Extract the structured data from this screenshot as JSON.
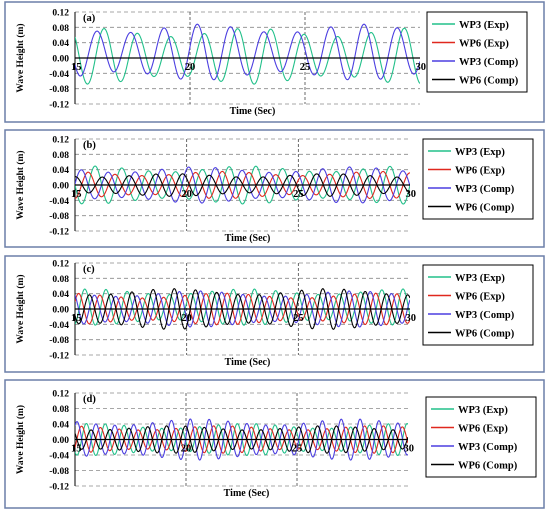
{
  "chart_data": [
    {
      "type": "line",
      "panel_label": "(a)",
      "xlabel": "Time (Sec)",
      "ylabel": "Wave Height (m)",
      "xlim": [
        15,
        30
      ],
      "ylim": [
        -0.12,
        0.12
      ],
      "x_ticks": [
        "15",
        "20",
        "25",
        "30"
      ],
      "y_ticks": [
        "0.12",
        "0.08",
        "0.04",
        "0.00",
        "-0.04",
        "-0.08",
        "-0.12"
      ],
      "grid": "dashed horizontal at y ticks, dashed vertical at 20 and 25",
      "legend_position": "right",
      "series": [
        {
          "name": "WP3 (Exp)",
          "color": "#22c08a",
          "amplitude": 0.062,
          "offset": 0.005,
          "period": 1.45,
          "phase": 0.2,
          "time_shift": 0.0
        },
        {
          "name": "WP6 (Exp)",
          "color": "#e0281e",
          "amplitude": 0.0,
          "offset": 0.0,
          "period": 1.45,
          "phase": 0.0,
          "time_shift": 0.0
        },
        {
          "name": "WP3 (Comp)",
          "color": "#4b3ee0",
          "amplitude": 0.062,
          "offset": 0.015,
          "period": 1.45,
          "phase": 1.5,
          "time_shift": -0.0008
        },
        {
          "name": "WP6 (Comp)",
          "color": "#000000",
          "amplitude": 0.0,
          "offset": 0.0,
          "period": 1.45,
          "phase": 0.0,
          "time_shift": 0.0
        }
      ]
    },
    {
      "type": "line",
      "panel_label": "(b)",
      "xlabel": "Time (Sec)",
      "ylabel": "Wave Height (m)",
      "xlim": [
        15,
        30
      ],
      "ylim": [
        -0.12,
        0.12
      ],
      "x_ticks": [
        "15",
        "20",
        "25",
        "30"
      ],
      "y_ticks": [
        "0.12",
        "0.08",
        "0.04",
        "0.00",
        "-0.04",
        "-0.08",
        "-0.12"
      ],
      "grid": "dashed horizontal at y ticks, dashed vertical at 20 and 25",
      "legend_position": "right",
      "series": [
        {
          "name": "WP3 (Exp)",
          "color": "#22c08a",
          "amplitude": 0.042,
          "offset": 0.0,
          "period": 1.2,
          "phase": 0.0,
          "time_shift": 0.0
        },
        {
          "name": "WP6 (Exp)",
          "color": "#e0281e",
          "amplitude": 0.03,
          "offset": 0.0,
          "period": 1.2,
          "phase": 1.6,
          "time_shift": 0.0
        },
        {
          "name": "WP3 (Comp)",
          "color": "#4b3ee0",
          "amplitude": 0.04,
          "offset": 0.0,
          "period": 1.2,
          "phase": 3.2,
          "time_shift": 0.0
        },
        {
          "name": "WP6 (Comp)",
          "color": "#000000",
          "amplitude": 0.025,
          "offset": 0.0,
          "period": 1.2,
          "phase": 4.6,
          "time_shift": 0.0
        }
      ]
    },
    {
      "type": "line",
      "panel_label": "(c)",
      "xlabel": "Time (Sec)",
      "ylabel": "Wave Height (m)",
      "xlim": [
        15,
        30
      ],
      "ylim": [
        -0.12,
        0.12
      ],
      "x_ticks": [
        "15",
        "20",
        "25",
        "30"
      ],
      "y_ticks": [
        "0.12",
        "0.08",
        "0.04",
        "0.00",
        "-0.04",
        "-0.08",
        "-0.12"
      ],
      "grid": "dashed horizontal at y ticks, dashed vertical at 20 and 25",
      "legend_position": "right",
      "series": [
        {
          "name": "WP3 (Exp)",
          "color": "#22c08a",
          "amplitude": 0.04,
          "offset": 0.005,
          "period": 0.95,
          "phase": 0.0,
          "time_shift": 0.0
        },
        {
          "name": "WP6 (Exp)",
          "color": "#e0281e",
          "amplitude": 0.035,
          "offset": 0.0,
          "period": 0.95,
          "phase": 1.8,
          "time_shift": 0.0
        },
        {
          "name": "WP3 (Comp)",
          "color": "#4b3ee0",
          "amplitude": 0.04,
          "offset": 0.0,
          "period": 0.95,
          "phase": 3.4,
          "time_shift": 0.0
        },
        {
          "name": "WP6 (Comp)",
          "color": "#000000",
          "amplitude": 0.045,
          "offset": 0.0,
          "period": 0.95,
          "phase": 4.9,
          "time_shift": 0.0
        }
      ]
    },
    {
      "type": "line",
      "panel_label": "(d)",
      "xlabel": "Time (Sec)",
      "ylabel": "Wave Height (m)",
      "xlim": [
        15,
        30
      ],
      "ylim": [
        -0.12,
        0.12
      ],
      "x_ticks": [
        "15",
        "20",
        "25",
        "30"
      ],
      "y_ticks": [
        "0.12",
        "0.08",
        "0.04",
        "0.00",
        "-0.04",
        "-0.08",
        "-0.12"
      ],
      "grid": "dashed horizontal at y ticks, dashed vertical at 20 and 25",
      "legend_position": "right",
      "series": [
        {
          "name": "WP3 (Exp)",
          "color": "#22c08a",
          "amplitude": 0.035,
          "offset": 0.0,
          "period": 0.85,
          "phase": 0.0,
          "time_shift": 0.0
        },
        {
          "name": "WP6 (Exp)",
          "color": "#e0281e",
          "amplitude": 0.03,
          "offset": 0.0,
          "period": 0.85,
          "phase": 1.6,
          "time_shift": 0.0
        },
        {
          "name": "WP3 (Comp)",
          "color": "#4b3ee0",
          "amplitude": 0.045,
          "offset": 0.0,
          "period": 0.85,
          "phase": 3.1,
          "time_shift": 0.0
        },
        {
          "name": "WP6 (Comp)",
          "color": "#000000",
          "amplitude": 0.03,
          "offset": 0.0,
          "period": 0.85,
          "phase": 4.7,
          "time_shift": 0.0
        }
      ]
    }
  ]
}
